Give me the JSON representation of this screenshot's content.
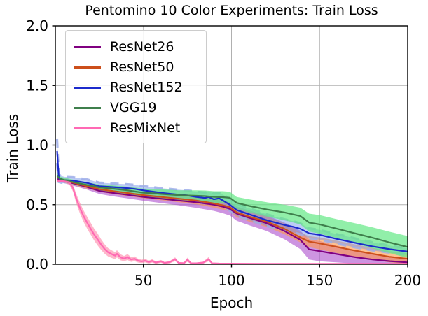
{
  "chart": {
    "title": "Pentomino 10 Color Experiments: Train Loss",
    "xlabel": "Epoch",
    "ylabel": "Train Loss"
  },
  "chart_data": {
    "type": "line",
    "title": "Pentomino 10 Color Experiments: Train Loss",
    "xlabel": "Epoch",
    "ylabel": "Train Loss",
    "xlim": [
      0,
      200
    ],
    "ylim": [
      0.0,
      2.0
    ],
    "x_ticks": [
      "50",
      "100",
      "150",
      "200"
    ],
    "y_ticks": [
      "0.0",
      "0.5",
      "1.0",
      "1.5",
      "2.0"
    ],
    "grid": true,
    "grid_color": "#b0b0b0",
    "axis_color": "#000000",
    "legend_position": "upper left",
    "series": [
      {
        "name": "ResNet26",
        "color": "#800080",
        "band_color": "#AF52CE",
        "band_alpha": 0.62,
        "points": [
          [
            1,
            0.72,
            0.02
          ],
          [
            3,
            0.705,
            0.015
          ],
          [
            10,
            0.68,
            0.02
          ],
          [
            18,
            0.648,
            0.022
          ],
          [
            25,
            0.615,
            0.025
          ],
          [
            32,
            0.6,
            0.028
          ],
          [
            40,
            0.585,
            0.03
          ],
          [
            50,
            0.565,
            0.032
          ],
          [
            60,
            0.55,
            0.036
          ],
          [
            70,
            0.535,
            0.04
          ],
          [
            80,
            0.52,
            0.046
          ],
          [
            90,
            0.5,
            0.052
          ],
          [
            95,
            0.483,
            0.054
          ],
          [
            99,
            0.465,
            0.055
          ],
          [
            103,
            0.425,
            0.06
          ],
          [
            110,
            0.39,
            0.062
          ],
          [
            120,
            0.345,
            0.066
          ],
          [
            130,
            0.28,
            0.07
          ],
          [
            139,
            0.205,
            0.078
          ],
          [
            144,
            0.125,
            0.085
          ],
          [
            150,
            0.11,
            0.085
          ],
          [
            160,
            0.085,
            0.07
          ],
          [
            170,
            0.06,
            0.055
          ],
          [
            180,
            0.04,
            0.042
          ],
          [
            190,
            0.026,
            0.03
          ],
          [
            200,
            0.016,
            0.022
          ]
        ]
      },
      {
        "name": "ResNet50",
        "color": "#CC4F1B",
        "band_color": "#FF9848",
        "band_alpha": 0.6,
        "points": [
          [
            1,
            0.73,
            0.02
          ],
          [
            3,
            0.71,
            0.016
          ],
          [
            10,
            0.685,
            0.02
          ],
          [
            18,
            0.655,
            0.02
          ],
          [
            25,
            0.63,
            0.022
          ],
          [
            32,
            0.615,
            0.024
          ],
          [
            40,
            0.6,
            0.025
          ],
          [
            50,
            0.58,
            0.026
          ],
          [
            60,
            0.565,
            0.028
          ],
          [
            70,
            0.55,
            0.03
          ],
          [
            80,
            0.535,
            0.032
          ],
          [
            90,
            0.51,
            0.035
          ],
          [
            95,
            0.495,
            0.036
          ],
          [
            99,
            0.48,
            0.036
          ],
          [
            103,
            0.435,
            0.04
          ],
          [
            110,
            0.4,
            0.042
          ],
          [
            120,
            0.358,
            0.045
          ],
          [
            130,
            0.298,
            0.045
          ],
          [
            139,
            0.225,
            0.042
          ],
          [
            144,
            0.19,
            0.046
          ],
          [
            150,
            0.175,
            0.05
          ],
          [
            160,
            0.145,
            0.052
          ],
          [
            170,
            0.115,
            0.052
          ],
          [
            180,
            0.088,
            0.05
          ],
          [
            190,
            0.062,
            0.047
          ],
          [
            200,
            0.046,
            0.045
          ]
        ]
      },
      {
        "name": "ResNet152",
        "color": "#1B2ACC",
        "band_color": "#6B8FE8",
        "band_alpha": 0.45,
        "band_edge": {
          "color": "#9DADE9",
          "dash": "12 9",
          "width": 3.2,
          "opacity": 0.85
        },
        "points": [
          [
            1,
            0.95,
            0.1
          ],
          [
            2,
            0.72,
            0.03
          ],
          [
            5,
            0.706,
            0.028
          ],
          [
            10,
            0.702,
            0.028
          ],
          [
            18,
            0.682,
            0.03
          ],
          [
            25,
            0.655,
            0.03
          ],
          [
            32,
            0.648,
            0.03
          ],
          [
            40,
            0.64,
            0.032
          ],
          [
            45,
            0.632,
            0.034
          ],
          [
            50,
            0.62,
            0.036
          ],
          [
            55,
            0.61,
            0.038
          ],
          [
            60,
            0.6,
            0.038
          ],
          [
            65,
            0.592,
            0.04
          ],
          [
            70,
            0.585,
            0.04
          ],
          [
            75,
            0.578,
            0.042
          ],
          [
            80,
            0.565,
            0.044
          ],
          [
            85,
            0.556,
            0.046
          ],
          [
            87,
            0.565,
            0.046
          ],
          [
            90,
            0.545,
            0.048
          ],
          [
            93,
            0.553,
            0.048
          ],
          [
            96,
            0.527,
            0.05
          ],
          [
            99,
            0.5,
            0.05
          ],
          [
            103,
            0.455,
            0.05
          ],
          [
            110,
            0.42,
            0.05
          ],
          [
            120,
            0.37,
            0.05
          ],
          [
            130,
            0.33,
            0.048
          ],
          [
            135,
            0.315,
            0.047
          ],
          [
            139,
            0.298,
            0.046
          ],
          [
            144,
            0.26,
            0.042
          ],
          [
            150,
            0.247,
            0.042
          ],
          [
            160,
            0.212,
            0.04
          ],
          [
            170,
            0.18,
            0.038
          ],
          [
            180,
            0.15,
            0.034
          ],
          [
            190,
            0.126,
            0.03
          ],
          [
            200,
            0.106,
            0.028
          ]
        ]
      },
      {
        "name": "VGG19",
        "color": "#3F7F4C",
        "band_color": "#62E885",
        "band_alpha": 0.7,
        "points": [
          [
            1,
            0.74,
            0.03
          ],
          [
            3,
            0.715,
            0.02
          ],
          [
            10,
            0.69,
            0.02
          ],
          [
            18,
            0.665,
            0.022
          ],
          [
            25,
            0.645,
            0.025
          ],
          [
            32,
            0.635,
            0.028
          ],
          [
            40,
            0.622,
            0.03
          ],
          [
            50,
            0.6,
            0.035
          ],
          [
            55,
            0.597,
            0.036
          ],
          [
            60,
            0.59,
            0.038
          ],
          [
            70,
            0.58,
            0.04
          ],
          [
            80,
            0.575,
            0.045
          ],
          [
            85,
            0.572,
            0.047
          ],
          [
            90,
            0.565,
            0.048
          ],
          [
            95,
            0.563,
            0.05
          ],
          [
            99,
            0.558,
            0.05
          ],
          [
            103,
            0.515,
            0.05
          ],
          [
            110,
            0.49,
            0.055
          ],
          [
            120,
            0.46,
            0.06
          ],
          [
            130,
            0.435,
            0.065
          ],
          [
            139,
            0.405,
            0.07
          ],
          [
            144,
            0.35,
            0.075
          ],
          [
            150,
            0.335,
            0.078
          ],
          [
            160,
            0.298,
            0.08
          ],
          [
            170,
            0.26,
            0.085
          ],
          [
            180,
            0.222,
            0.088
          ],
          [
            190,
            0.182,
            0.09
          ],
          [
            200,
            0.145,
            0.092
          ]
        ]
      },
      {
        "name": "ResMixNet",
        "color": "#FF69B4",
        "band_color": "#FF8FAE",
        "band_alpha": 0.65,
        "points": [
          [
            1,
            0.7,
            0.01
          ],
          [
            5,
            0.697,
            0.012
          ],
          [
            8,
            0.688,
            0.02
          ],
          [
            10,
            0.64,
            0.03
          ],
          [
            12,
            0.545,
            0.04
          ],
          [
            14,
            0.47,
            0.045
          ],
          [
            16,
            0.405,
            0.048
          ],
          [
            18,
            0.35,
            0.05
          ],
          [
            20,
            0.3,
            0.05
          ],
          [
            22,
            0.25,
            0.05
          ],
          [
            24,
            0.208,
            0.05
          ],
          [
            26,
            0.165,
            0.045
          ],
          [
            28,
            0.128,
            0.04
          ],
          [
            30,
            0.1,
            0.035
          ],
          [
            32,
            0.085,
            0.032
          ],
          [
            34,
            0.072,
            0.03
          ],
          [
            35,
            0.088,
            0.03
          ],
          [
            37,
            0.058,
            0.025
          ],
          [
            39,
            0.048,
            0.022
          ],
          [
            41,
            0.06,
            0.025
          ],
          [
            43,
            0.04,
            0.02
          ],
          [
            45,
            0.046,
            0.02
          ],
          [
            47,
            0.03,
            0.016
          ],
          [
            49,
            0.024,
            0.014
          ],
          [
            51,
            0.03,
            0.015
          ],
          [
            53,
            0.018,
            0.012
          ],
          [
            55,
            0.028,
            0.014
          ],
          [
            57,
            0.014,
            0.01
          ],
          [
            60,
            0.024,
            0.012
          ],
          [
            62,
            0.011,
            0.008
          ],
          [
            65,
            0.018,
            0.01
          ],
          [
            68,
            0.042,
            0.016
          ],
          [
            70,
            0.011,
            0.007
          ],
          [
            73,
            0.009,
            0.006
          ],
          [
            75,
            0.038,
            0.018
          ],
          [
            77,
            0.009,
            0.006
          ],
          [
            80,
            0.008,
            0.005
          ],
          [
            84,
            0.014,
            0.009
          ],
          [
            87,
            0.042,
            0.018
          ],
          [
            89,
            0.008,
            0.005
          ],
          [
            93,
            0.006,
            0.004
          ],
          [
            100,
            0.005,
            0.003
          ],
          [
            120,
            0.004,
            0.003
          ],
          [
            150,
            0.004,
            0.003
          ],
          [
            200,
            0.004,
            0.003
          ]
        ]
      }
    ]
  }
}
